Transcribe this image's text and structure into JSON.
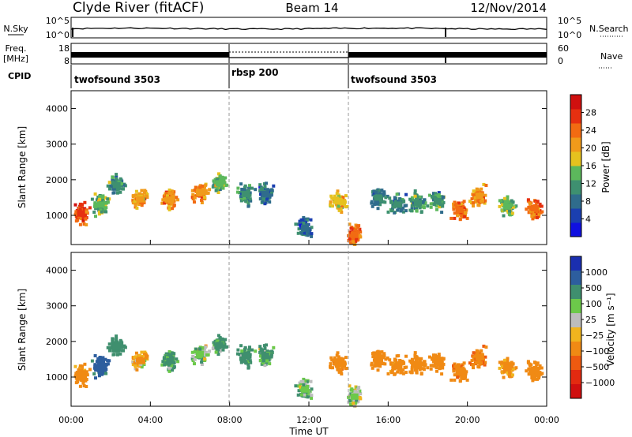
{
  "header": {
    "station": "Clyde River (fitACF)",
    "beam": "Beam 14",
    "date": "12/Nov/2014"
  },
  "noise_panel": {
    "left_label": "N.Sky",
    "left_ticks": [
      "10^5",
      "10^0"
    ],
    "right_label": "N.Search",
    "right_ticks": [
      "10^5",
      "10^0"
    ]
  },
  "freq_panel": {
    "left_label_1": "Freq.",
    "left_label_2": "[MHz]",
    "left_ticks": [
      "18",
      "8"
    ],
    "right_label": "Nave",
    "right_ticks": [
      "60",
      "0"
    ]
  },
  "cpid": {
    "label": "CPID",
    "segments": [
      {
        "name": "twofsound 3503",
        "start_hour": 0,
        "end_hour": 8
      },
      {
        "name": "rbsp 200",
        "start_hour": 8,
        "end_hour": 14
      },
      {
        "name": "twofsound 3503",
        "start_hour": 14,
        "end_hour": 24
      }
    ]
  },
  "colors": {
    "power_scale": [
      "#1010e0",
      "#1a3fb0",
      "#2f6c8c",
      "#3e9070",
      "#5cb85c",
      "#e6c21e",
      "#f09a1a",
      "#f26b12",
      "#e63010",
      "#d0100f"
    ],
    "velocity_scale": [
      "#1a2fb0",
      "#2d5e9e",
      "#3f8f6e",
      "#6cc94a",
      "#bdbdbd",
      "#f0b41e",
      "#f08a14",
      "#ee5a10",
      "#e32a10",
      "#d00f0f"
    ]
  },
  "chart_data": [
    {
      "type": "heatmap",
      "panel": "power",
      "ylabel": "Slant Range [km]",
      "ylim": [
        180,
        4500
      ],
      "yticks": [
        "1000",
        "2000",
        "3000",
        "4000"
      ],
      "xlim": [
        0,
        24
      ],
      "colorbar": {
        "label": "Power [dB]",
        "range": [
          0,
          32
        ],
        "ticks": [
          "4",
          "8",
          "12",
          "16",
          "20",
          "24",
          "28"
        ]
      },
      "series": [
        {
          "name": "",
          "x": [
            0.5,
            1.5,
            2.3,
            3.5,
            5.0,
            6.5,
            7.5,
            8.8,
            9.8,
            11.8,
            13.5,
            14.3,
            15.5,
            16.5,
            17.5,
            18.5,
            19.6,
            20.6,
            22.0,
            23.4
          ],
          "y": [
            1050,
            1300,
            1850,
            1450,
            1450,
            1650,
            1900,
            1600,
            1600,
            650,
            1400,
            450,
            1500,
            1300,
            1350,
            1400,
            1150,
            1550,
            1250,
            1200
          ],
          "z": [
            26,
            14,
            10,
            20,
            22,
            22,
            14,
            10,
            8,
            8,
            18,
            24,
            10,
            10,
            12,
            12,
            24,
            22,
            14,
            24
          ]
        }
      ]
    },
    {
      "type": "heatmap",
      "panel": "velocity",
      "ylabel": "Slant Range [km]",
      "ylim": [
        180,
        4500
      ],
      "yticks": [
        "1000",
        "2000",
        "3000",
        "4000"
      ],
      "xlabel": "Time UT",
      "xlim": [
        0,
        24
      ],
      "xticks": [
        "00:00",
        "04:00",
        "08:00",
        "12:00",
        "16:00",
        "20:00",
        "00:00"
      ],
      "colorbar": {
        "label": "Velocity [m s⁻¹]",
        "range": [
          -1000,
          1000
        ],
        "ticks": [
          "1000",
          "500",
          "100",
          "25",
          "−25",
          "−100",
          "−500",
          "−1000"
        ]
      },
      "series": [
        {
          "name": "",
          "x": [
            0.5,
            1.5,
            2.3,
            3.5,
            5.0,
            6.5,
            7.5,
            8.8,
            9.8,
            11.8,
            13.5,
            14.3,
            15.5,
            16.5,
            17.5,
            18.5,
            19.6,
            20.6,
            22.0,
            23.4
          ],
          "y": [
            1050,
            1300,
            1850,
            1450,
            1450,
            1650,
            1900,
            1600,
            1600,
            650,
            1400,
            450,
            1500,
            1300,
            1350,
            1400,
            1150,
            1550,
            1250,
            1200
          ],
          "z": [
            -200,
            600,
            300,
            -100,
            150,
            50,
            120,
            150,
            120,
            80,
            -400,
            25,
            -300,
            -200,
            -250,
            -300,
            -400,
            -450,
            -150,
            -300
          ]
        }
      ]
    }
  ]
}
